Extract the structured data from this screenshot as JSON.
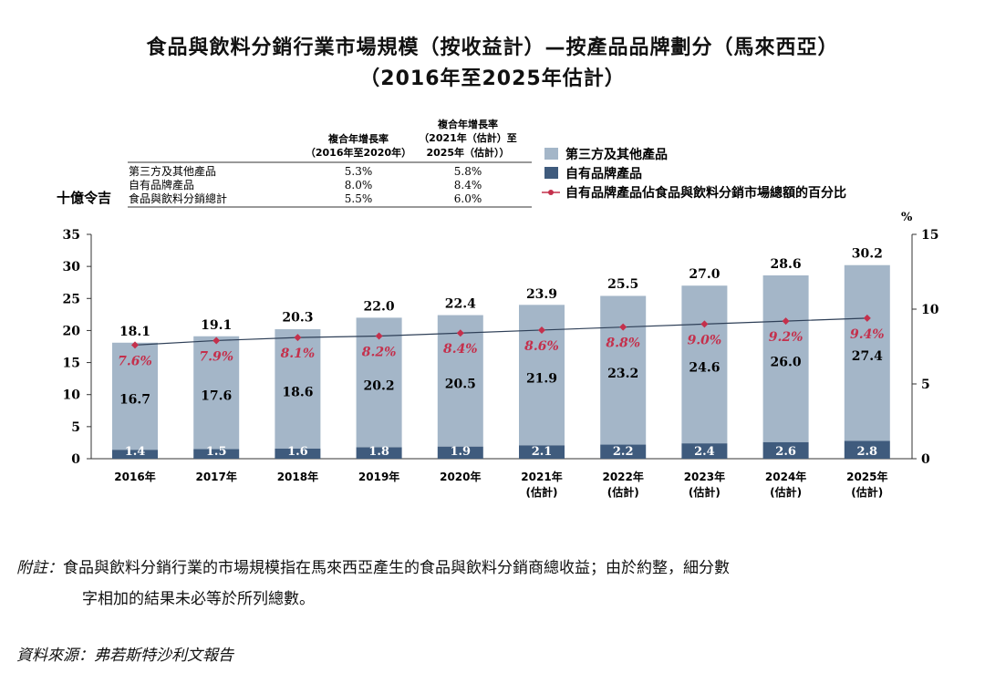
{
  "title_line1": "食品與飲料分銷行業市場規模（按收益計）—按產品品牌劃分（馬來西亞）",
  "title_line2": "（2016年至2025年估計）",
  "chart_data": {
    "type": "bar",
    "stacked": true,
    "categories": [
      [
        "2016年"
      ],
      [
        "2017年"
      ],
      [
        "2018年"
      ],
      [
        "2019年"
      ],
      [
        "2020年"
      ],
      [
        "2021年",
        "(估計)"
      ],
      [
        "2022年",
        "(估計)"
      ],
      [
        "2023年",
        "(估計)"
      ],
      [
        "2024年",
        "(估計)"
      ],
      [
        "2025年",
        "(估計)"
      ]
    ],
    "series": [
      {
        "name": "自有品牌產品",
        "color": "#3f5b7d",
        "values": [
          1.4,
          1.5,
          1.6,
          1.8,
          1.9,
          2.1,
          2.2,
          2.4,
          2.6,
          2.8
        ]
      },
      {
        "name": "第三方及其他產品",
        "color": "#a4b6c8",
        "values": [
          16.7,
          17.6,
          18.6,
          20.2,
          20.5,
          21.9,
          23.2,
          24.6,
          26.0,
          27.4
        ]
      }
    ],
    "totals": [
      18.1,
      19.1,
      20.3,
      22.0,
      22.4,
      23.9,
      25.5,
      27.0,
      28.6,
      30.2
    ],
    "line": {
      "name": "自有品牌產品佔食品與飲料分銷市場總額的百分比",
      "color": "#2e3f57",
      "marker_color": "#c4304c",
      "values": [
        7.6,
        7.9,
        8.1,
        8.2,
        8.4,
        8.6,
        8.8,
        9.0,
        9.2,
        9.4
      ],
      "labels": [
        "7.6%",
        "7.9%",
        "8.1%",
        "8.2%",
        "8.4%",
        "8.6%",
        "8.8%",
        "9.0%",
        "9.2%",
        "9.4%"
      ]
    },
    "ylabel": "十億令吉",
    "y2label": "%",
    "ylim": [
      0,
      35
    ],
    "yticks": [
      0,
      5,
      10,
      15,
      20,
      25,
      30,
      35
    ],
    "y2lim": [
      0,
      15
    ],
    "y2ticks": [
      0,
      5,
      10,
      15
    ],
    "legend_position": "top-right",
    "cagr_table": {
      "headers": [
        "複合年增長率",
        "（2016年至2020年）",
        "複合年增長率",
        "（2021年（估計）至",
        "2025年（估計））"
      ],
      "rows": [
        {
          "label": "第三方及其他產品",
          "v1": "5.3%",
          "v2": "5.8%"
        },
        {
          "label": "自有品牌產品",
          "v1": "8.0%",
          "v2": "8.4%"
        },
        {
          "label": "食品與飲料分銷總計",
          "v1": "5.5%",
          "v2": "6.0%"
        }
      ]
    }
  },
  "note_label": "附註：",
  "note_line1": "食品與飲料分銷行業的市場規模指在馬來西亞產生的食品與飲料分銷商總收益；由於約整，細分數",
  "note_line2": "字相加的結果未必等於所列總數。",
  "source": "資料來源：弗若斯特沙利文報告"
}
